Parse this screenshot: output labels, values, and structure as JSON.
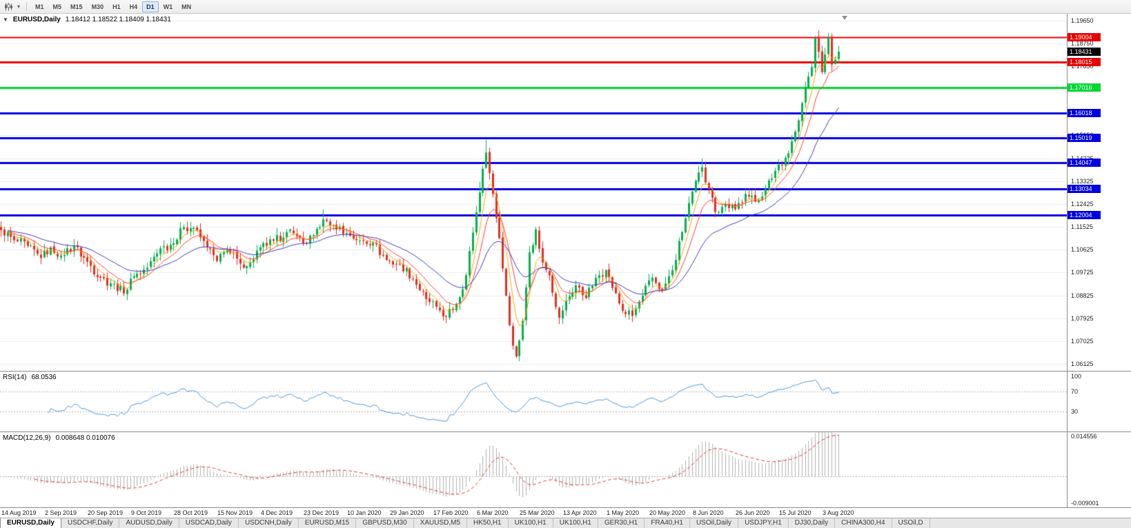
{
  "icons": {
    "collapse": "▼",
    "dropdown_caret": "▾"
  },
  "toolbar": {
    "timeframes": [
      "M1",
      "M5",
      "M15",
      "M30",
      "H1",
      "H4",
      "D1",
      "W1",
      "MN"
    ],
    "active_timeframe": "D1"
  },
  "chart": {
    "title_symbol": "EURUSD,Daily",
    "ohlc_text": "1.18412 1.18522 1.18409 1.18431",
    "ohlc": {
      "open": 1.18412,
      "high": 1.18522,
      "low": 1.18409,
      "close": 1.18431
    },
    "current_price": {
      "value": 1.18431,
      "label": "1.18431",
      "bg": "#000000"
    },
    "levels": [
      {
        "price": 1.19004,
        "label": "1.19004",
        "color": "#e80000",
        "width": 2
      },
      {
        "price": 1.18015,
        "label": "1.18015",
        "color": "#e80000",
        "width": 3
      },
      {
        "price": 1.17016,
        "label": "1.17016",
        "color": "#00d832",
        "width": 3
      },
      {
        "price": 1.16018,
        "label": "1.16018",
        "color": "#0000e0",
        "width": 3
      },
      {
        "price": 1.15019,
        "label": "1.15019",
        "color": "#0000e0",
        "width": 3
      },
      {
        "price": 1.14047,
        "label": "1.14047",
        "color": "#0000e0",
        "width": 3
      },
      {
        "price": 1.13034,
        "label": "1.13034",
        "color": "#0000e0",
        "width": 3
      },
      {
        "price": 1.12004,
        "label": "1.12004",
        "color": "#0000e0",
        "width": 3
      }
    ],
    "y_ticks": [
      {
        "value": 1.1965,
        "label": "1.19650"
      },
      {
        "value": 1.1875,
        "label": "1.18750"
      },
      {
        "value": 1.1785,
        "label": "1.17850"
      },
      {
        "value": 1.1695,
        "label": "1.16950"
      },
      {
        "value": 1.1605,
        "label": "1.16050"
      },
      {
        "value": 1.1515,
        "label": "1.15150"
      },
      {
        "value": 1.14225,
        "label": "1.14225"
      },
      {
        "value": 1.13325,
        "label": "1.13325"
      },
      {
        "value": 1.12425,
        "label": "1.12425"
      },
      {
        "value": 1.11525,
        "label": "1.11525"
      },
      {
        "value": 1.10625,
        "label": "1.10625"
      },
      {
        "value": 1.09725,
        "label": "1.09725"
      },
      {
        "value": 1.08825,
        "label": "1.08825"
      },
      {
        "value": 1.07925,
        "label": "1.07925"
      },
      {
        "value": 1.07025,
        "label": "1.07025"
      },
      {
        "value": 1.06125,
        "label": "1.06125"
      }
    ]
  },
  "rsi": {
    "title": "RSI(14)",
    "value": "68.0536",
    "ticks": [
      {
        "value": 100,
        "label": "100"
      },
      {
        "value": 70,
        "label": "70"
      },
      {
        "value": 30,
        "label": "30"
      }
    ],
    "levels": [
      70,
      30
    ],
    "range": [
      -10,
      110
    ],
    "color": "#4a96d8"
  },
  "macd": {
    "title": "MACD(12,26,9)",
    "values": "0.008648 0.010076",
    "ticks": [
      {
        "value": 0.014556,
        "label": "0.014556"
      },
      {
        "value": -0.009001,
        "label": "-0.009001"
      }
    ],
    "range": [
      -0.0105,
      0.015
    ],
    "bar_color": "#b0b0b0",
    "signal_color": "#e83a3a"
  },
  "tabs": {
    "active_index": 0,
    "items": [
      "EURUSD,Daily",
      "USDCHF,Daily",
      "AUDUSD,Daily",
      "USDCAD,Daily",
      "USDCNH,Daily",
      "EURUSD,M15",
      "GBPUSD,M30",
      "XAUUSD,M5",
      "HK50,H1",
      "UK100,H1",
      "UK100,H1",
      "GER30,H1",
      "FRA40,H1",
      "USOil,Daily",
      "USDJPY,H1",
      "DJ30,Daily",
      "CHINA300,H4",
      "USOil,D"
    ]
  },
  "chart_data": {
    "type": "candlestick",
    "symbol": "EURUSD",
    "timeframe": "Daily",
    "title": "EURUSD,Daily",
    "x_labels": [
      "14 Aug 2019",
      "2 Sep 2019",
      "20 Sep 2019",
      "9 Oct 2019",
      "28 Oct 2019",
      "15 Nov 2019",
      "4 Dec 2019",
      "23 Dec 2019",
      "10 Jan 2020",
      "29 Jan 2020",
      "17 Feb 2020",
      "6 Mar 2020",
      "25 Mar 2020",
      "13 Apr 2020",
      "1 May 2020",
      "20 May 2020",
      "8 Jun 2020",
      "26 Jun 2020",
      "15 Jul 2020",
      "3 Aug 2020"
    ],
    "candles_per_interval": 13,
    "visible_candles": 253,
    "total_slots": 321,
    "ylim": [
      1.05855,
      1.1992
    ],
    "price_anchors": [
      [
        0,
        1.114
      ],
      [
        4,
        1.11
      ],
      [
        8,
        1.1078
      ],
      [
        12,
        1.103
      ],
      [
        15,
        1.1072
      ],
      [
        18,
        1.104
      ],
      [
        22,
        1.1078
      ],
      [
        26,
        1.1015
      ],
      [
        30,
        1.0952
      ],
      [
        34,
        1.0928
      ],
      [
        37,
        1.089
      ],
      [
        40,
        1.0958
      ],
      [
        44,
        1.0992
      ],
      [
        48,
        1.1068
      ],
      [
        52,
        1.1088
      ],
      [
        55,
        1.1152
      ],
      [
        58,
        1.1148
      ],
      [
        62,
        1.1072
      ],
      [
        65,
        1.1018
      ],
      [
        68,
        1.1062
      ],
      [
        72,
        1.1008
      ],
      [
        75,
        1.1012
      ],
      [
        78,
        1.1072
      ],
      [
        82,
        1.1098
      ],
      [
        86,
        1.1132
      ],
      [
        89,
        1.1115
      ],
      [
        91,
        1.1088
      ],
      [
        94,
        1.112
      ],
      [
        97,
        1.1182
      ],
      [
        100,
        1.116
      ],
      [
        104,
        1.1128
      ],
      [
        108,
        1.1098
      ],
      [
        112,
        1.109
      ],
      [
        116,
        1.1022
      ],
      [
        120,
        1.1005
      ],
      [
        124,
        1.0948
      ],
      [
        128,
        1.0868
      ],
      [
        131,
        1.0838
      ],
      [
        134,
        1.0798
      ],
      [
        137,
        1.0848
      ],
      [
        140,
        1.0962
      ],
      [
        142,
        1.113
      ],
      [
        144,
        1.1288
      ],
      [
        146,
        1.1445
      ],
      [
        148,
        1.1282
      ],
      [
        150,
        1.1108
      ],
      [
        152,
        1.0882
      ],
      [
        154,
        1.0685
      ],
      [
        155,
        1.0642
      ],
      [
        157,
        1.0782
      ],
      [
        159,
        1.1052
      ],
      [
        161,
        1.1142
      ],
      [
        163,
        1.1012
      ],
      [
        165,
        1.0962
      ],
      [
        168,
        1.0795
      ],
      [
        170,
        1.0862
      ],
      [
        173,
        1.0922
      ],
      [
        176,
        1.0872
      ],
      [
        179,
        1.0952
      ],
      [
        182,
        1.0982
      ],
      [
        184,
        1.0912
      ],
      [
        187,
        1.0822
      ],
      [
        190,
        1.0802
      ],
      [
        193,
        1.0882
      ],
      [
        196,
        1.0952
      ],
      [
        199,
        1.0902
      ],
      [
        202,
        1.0982
      ],
      [
        205,
        1.1132
      ],
      [
        208,
        1.1292
      ],
      [
        211,
        1.1388
      ],
      [
        213,
        1.1302
      ],
      [
        215,
        1.1212
      ],
      [
        218,
        1.1242
      ],
      [
        221,
        1.1222
      ],
      [
        224,
        1.1282
      ],
      [
        227,
        1.1252
      ],
      [
        230,
        1.1302
      ],
      [
        234,
        1.1398
      ],
      [
        237,
        1.1442
      ],
      [
        240,
        1.1572
      ],
      [
        242,
        1.1702
      ],
      [
        244,
        1.1782
      ],
      [
        245,
        1.1898
      ],
      [
        246,
        1.1842
      ],
      [
        247,
        1.1762
      ],
      [
        248,
        1.1832
      ],
      [
        249,
        1.1902
      ],
      [
        250,
        1.1792
      ],
      [
        251,
        1.1812
      ],
      [
        252,
        1.1843
      ]
    ],
    "wick_overrides": [
      {
        "i": 97,
        "high": 1.1222
      },
      {
        "i": 144,
        "high": 1.133
      },
      {
        "i": 146,
        "high": 1.1495
      },
      {
        "i": 155,
        "low": 1.0636
      },
      {
        "i": 211,
        "high": 1.1422
      },
      {
        "i": 249,
        "high": 1.1916
      }
    ],
    "colors": {
      "candle_up": "#00b14e",
      "candle_down": "#ea2b1f",
      "grid": "#ececec"
    },
    "moving_averages": [
      {
        "period": 5,
        "color": "#f5a800",
        "type": "ema"
      },
      {
        "period": 10,
        "color": "#ff3b30",
        "type": "ema"
      },
      {
        "period": 26,
        "color": "#3a3ac8",
        "type": "ema"
      }
    ],
    "indicators": {
      "rsi_period": 14,
      "macd": [
        12,
        26,
        9
      ]
    }
  }
}
